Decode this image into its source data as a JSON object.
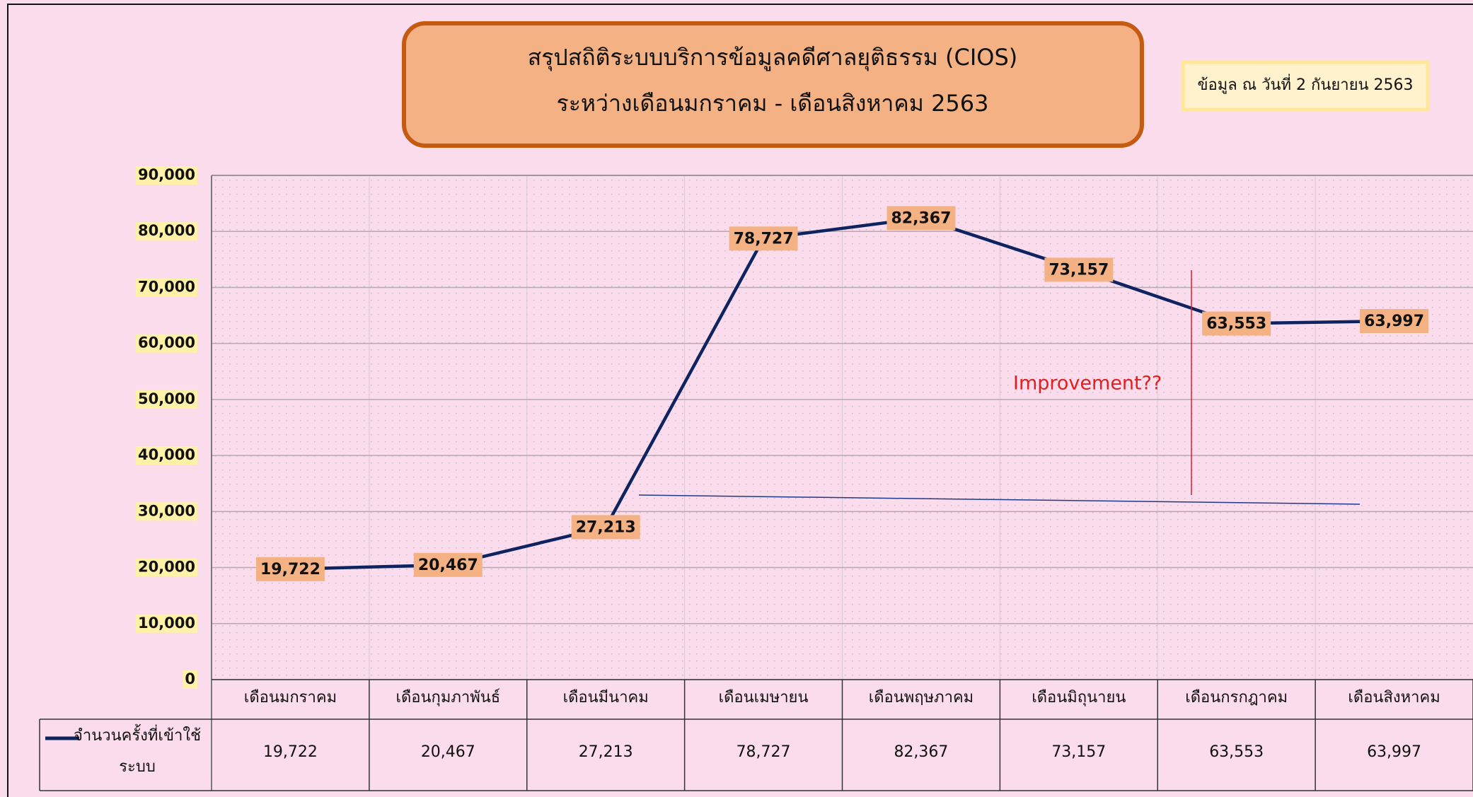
{
  "chart_data": {
    "type": "line",
    "title": "สรุปสถิติระบบบริการข้อมูลคดีศาลยุติธรรม (CIOS)",
    "subtitle": "ระหว่างเดือนมกราคม - เดือนสิงหาคม 2563",
    "note": "ข้อมูล ณ วันที่ 2 กันยายน 2563",
    "annotation": "Improvement??",
    "categories": [
      "เดือนมกราคม",
      "เดือนกุมภาพันธ์",
      "เดือนมีนาคม",
      "เดือนเมษายน",
      "เดือนพฤษภาคม",
      "เดือนมิถุนายน",
      "เดือนกรกฎาคม",
      "เดือนสิงหาคม"
    ],
    "series": [
      {
        "name": "จำนวนครั้งที่เข้าใช้ระบบ",
        "color": "#0d2461",
        "values": [
          19722,
          20467,
          27213,
          78727,
          82367,
          73157,
          63553,
          63997
        ],
        "value_labels": [
          "19,722",
          "20,467",
          "27,213",
          "78,727",
          "82,367",
          "73,157",
          "63,553",
          "63,997"
        ]
      }
    ],
    "ylim": [
      0,
      90000
    ],
    "yticks": [
      0,
      {
        "value": 10000,
        "label": "10,000"
      },
      {
        "value": 20000,
        "label": "20,000"
      },
      {
        "value": 30000,
        "label": "30,000"
      },
      {
        "value": 40000,
        "label": "40,000"
      },
      {
        "value": 50000,
        "label": "50,000"
      },
      {
        "value": 60000,
        "label": "60,000"
      },
      {
        "value": 70000,
        "label": "70,000"
      },
      {
        "value": 80000,
        "label": "80,000"
      },
      {
        "value": 90000,
        "label": "90,000"
      }
    ],
    "grid": true
  }
}
